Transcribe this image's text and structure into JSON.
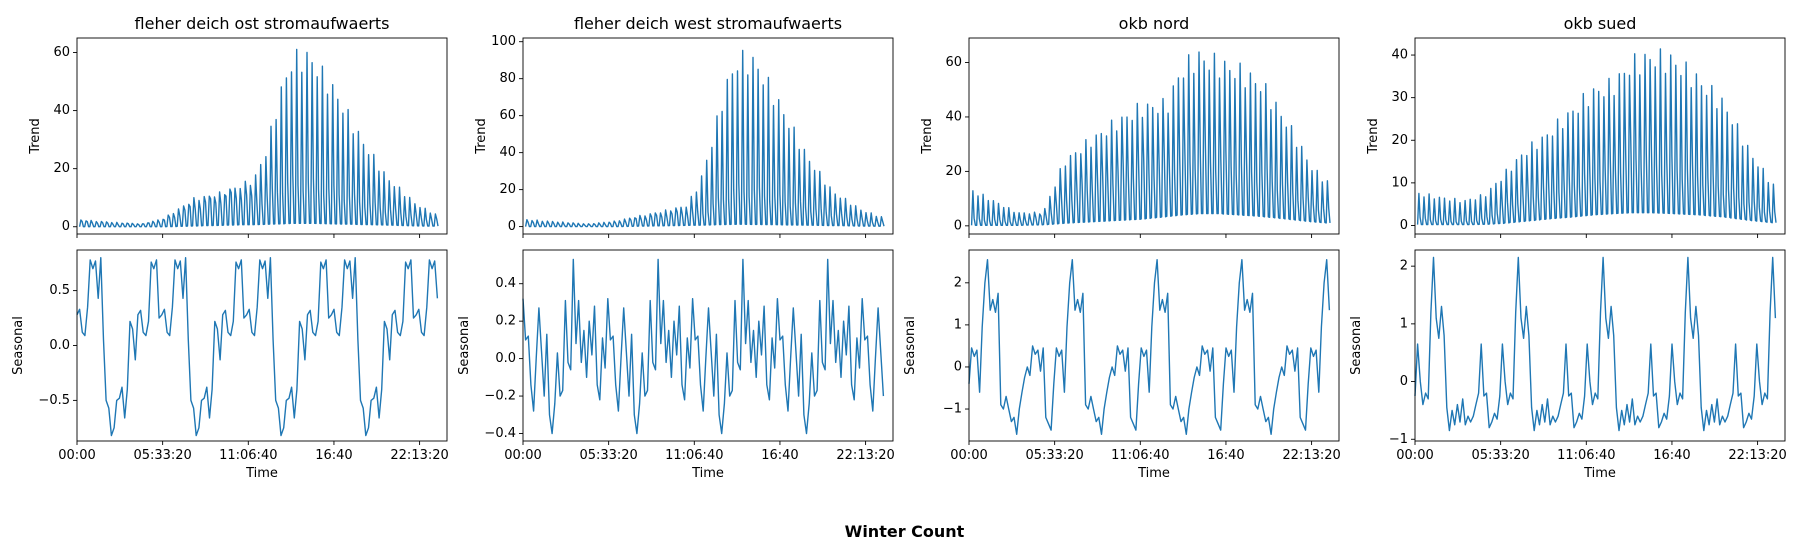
{
  "figure": {
    "suptitle": "Winter Count",
    "line_color": "#1f77b4"
  },
  "chart_data": [
    {
      "type": "line",
      "title": "fleher deich ost stromaufwaerts",
      "xlabel": "",
      "ylabel": "Trend",
      "ylim": [
        -2.5,
        65
      ],
      "yticks": [
        0,
        20,
        40,
        60
      ],
      "x_range": [
        0,
        86400
      ],
      "xticks": [
        0,
        20000,
        40000,
        60000,
        80000
      ],
      "xtick_labels": [
        "",
        "",
        "",
        "",
        ""
      ],
      "description": "trend of dense interleaved series: upper envelope rises to peak ~62 near 11:06:40-16:40, secondary low band ~0-20",
      "envelope": {
        "x": [
          0,
          9000,
          15000,
          20000,
          27000,
          33000,
          38000,
          41000,
          44000,
          47000,
          50000,
          54000,
          60000,
          66000,
          72000,
          79000,
          84000
        ],
        "upper": [
          2.5,
          1.5,
          1.0,
          3.0,
          10.0,
          12.0,
          15.0,
          17.0,
          28.0,
          48.0,
          61.0,
          62.0,
          49.0,
          32.0,
          18.0,
          8.0,
          4.0
        ],
        "mid": [
          2.0,
          1.0,
          1.0,
          2.5,
          8.0,
          11.0,
          13.0,
          10.0,
          12.0,
          16.0,
          18.0,
          17.0,
          14.0,
          10.0,
          7.0,
          4.0,
          2.5
        ],
        "lower": [
          0.0,
          0.0,
          0.0,
          0.0,
          0.3,
          0.5,
          0.7,
          0.7,
          0.9,
          1.0,
          1.2,
          1.2,
          1.0,
          0.8,
          0.6,
          0.3,
          0.2
        ]
      }
    },
    {
      "type": "line",
      "title": "fleher deich west stromaufwaerts",
      "xlabel": "",
      "ylabel": "Trend",
      "ylim": [
        -4,
        102
      ],
      "yticks": [
        0,
        20,
        40,
        60,
        80,
        100
      ],
      "x_range": [
        0,
        86400
      ],
      "xticks": [
        0,
        20000,
        40000,
        60000,
        80000
      ],
      "xtick_labels": [
        "",
        "",
        "",
        "",
        ""
      ],
      "description": "trend with peak ~97 near 12:00",
      "envelope": {
        "x": [
          0,
          9000,
          15000,
          21000,
          27000,
          33000,
          38000,
          41000,
          44000,
          47000,
          50000,
          54000,
          60000,
          66000,
          72000,
          79000,
          84000
        ],
        "upper": [
          4.0,
          2.5,
          1.5,
          3.0,
          6.0,
          9.0,
          12.0,
          25.0,
          50.0,
          80.0,
          96.0,
          94.0,
          68.0,
          40.0,
          20.0,
          9.0,
          5.0
        ],
        "mid": [
          2.5,
          1.5,
          1.0,
          2.0,
          5.0,
          7.0,
          9.0,
          8.0,
          14.0,
          20.0,
          24.0,
          22.0,
          17.0,
          12.0,
          8.0,
          4.0,
          2.5
        ],
        "lower": [
          0.0,
          0.0,
          0.0,
          0.0,
          0.3,
          0.5,
          0.7,
          0.8,
          1.0,
          1.2,
          1.3,
          1.2,
          1.0,
          0.8,
          0.6,
          0.3,
          0.2
        ]
      }
    },
    {
      "type": "line",
      "title": "okb nord",
      "xlabel": "",
      "ylabel": "Trend",
      "ylim": [
        -3,
        69
      ],
      "yticks": [
        0,
        20,
        40,
        60
      ],
      "x_range": [
        0,
        86400
      ],
      "xticks": [
        0,
        20000,
        40000,
        60000,
        80000
      ],
      "xtick_labels": [
        "",
        "",
        "",
        "",
        ""
      ],
      "description": "trend rising from ~14 to peak ~66 near 11:06:40",
      "envelope": {
        "x": [
          0,
          5000,
          11000,
          17000,
          22000,
          28000,
          34000,
          40000,
          46000,
          49000,
          53000,
          58000,
          63000,
          68000,
          74000,
          80000,
          84000
        ],
        "upper": [
          14.0,
          10.0,
          5.0,
          5.0,
          25.0,
          33.0,
          40.0,
          46.0,
          47.0,
          60.0,
          66.0,
          63.0,
          60.0,
          55.0,
          40.0,
          22.0,
          16.0
        ],
        "mid": [
          3.0,
          2.5,
          2.0,
          4.0,
          12.0,
          18.0,
          22.0,
          25.0,
          26.0,
          28.0,
          30.0,
          28.0,
          26.0,
          22.0,
          16.0,
          9.0,
          6.0
        ],
        "lower": [
          0.2,
          0.2,
          0.2,
          0.4,
          1.0,
          1.5,
          2.0,
          2.5,
          3.5,
          4.0,
          4.5,
          4.5,
          4.0,
          3.5,
          2.5,
          1.5,
          1.0
        ]
      }
    },
    {
      "type": "line",
      "title": "okb sued",
      "xlabel": "",
      "ylabel": "Trend",
      "ylim": [
        -2,
        44
      ],
      "yticks": [
        0,
        10,
        20,
        30,
        40
      ],
      "x_range": [
        0,
        86400
      ],
      "xticks": [
        0,
        20000,
        40000,
        60000,
        80000
      ],
      "xtick_labels": [
        "",
        "",
        "",
        "",
        ""
      ],
      "description": "trend rising to plateau ~42 near 11:06:40-16:40",
      "envelope": {
        "x": [
          0,
          5000,
          11000,
          16000,
          20000,
          25000,
          30000,
          36000,
          41000,
          46000,
          50000,
          55000,
          60000,
          66000,
          72000,
          78000,
          84000
        ],
        "upper": [
          8.0,
          7.0,
          6.0,
          7.5,
          12.0,
          18.0,
          22.0,
          28.0,
          33.0,
          35.0,
          40.0,
          42.0,
          41.0,
          36.0,
          30.0,
          18.0,
          9.0
        ],
        "mid": [
          2.0,
          1.5,
          1.0,
          2.0,
          5.0,
          8.0,
          10.0,
          12.0,
          14.0,
          16.0,
          20.0,
          18.0,
          16.0,
          14.0,
          10.0,
          6.0,
          3.0
        ],
        "lower": [
          0.2,
          0.2,
          0.2,
          0.3,
          0.5,
          1.0,
          1.5,
          2.0,
          2.5,
          2.8,
          3.0,
          3.0,
          2.8,
          2.5,
          2.0,
          1.2,
          0.6
        ]
      }
    },
    {
      "type": "line",
      "title": "",
      "xlabel": "Time",
      "ylabel": "Seasonal",
      "ylim": [
        -0.87,
        0.87
      ],
      "yticks": [
        -0.5,
        0.0,
        0.5
      ],
      "ytick_labels": [
        "−0.5",
        "0.0",
        "0.5"
      ],
      "x_range": [
        0,
        86400
      ],
      "xticks": [
        0,
        20000,
        40000,
        60000,
        80000
      ],
      "xtick_labels": [
        "00:00",
        "05:33:20",
        "11:06:40",
        "16:40",
        "22:13:20"
      ],
      "period_seconds": 19800,
      "period_cycle_values": [
        0.28,
        0.33,
        0.12,
        0.09,
        0.35,
        0.78,
        0.7,
        0.77,
        0.43,
        0.8,
        0.05,
        -0.5,
        -0.57,
        -0.82,
        -0.75,
        -0.5,
        -0.48,
        -0.38,
        -0.66,
        -0.4,
        0.22,
        0.15,
        -0.13,
        0.28,
        0.32,
        0.12,
        0.09,
        0.22,
        0.76,
        0.7,
        0.78,
        0.25
      ],
      "x_end": 84300
    },
    {
      "type": "line",
      "title": "",
      "xlabel": "Time",
      "ylabel": "Seasonal",
      "ylim": [
        -0.44,
        0.58
      ],
      "yticks": [
        -0.4,
        -0.2,
        0.0,
        0.2,
        0.4
      ],
      "ytick_labels": [
        "−0.4",
        "−0.2",
        "0.0",
        "0.2",
        "0.4"
      ],
      "x_range": [
        0,
        86400
      ],
      "xticks": [
        0,
        20000,
        40000,
        60000,
        80000
      ],
      "xtick_labels": [
        "00:00",
        "05:33:20",
        "11:06:40",
        "16:40",
        "22:13:20"
      ],
      "period_seconds": 19800,
      "period_cycle_values": [
        0.32,
        0.1,
        0.12,
        -0.14,
        -0.28,
        0.0,
        0.27,
        0.04,
        -0.2,
        0.13,
        -0.3,
        -0.4,
        -0.24,
        0.03,
        -0.2,
        -0.17,
        0.31,
        -0.02,
        -0.06,
        0.53,
        0.08,
        0.31,
        -0.02,
        0.15,
        -0.1,
        0.2,
        0.02,
        0.28,
        -0.14,
        -0.22,
        0.11,
        -0.05
      ],
      "x_end": 84300
    },
    {
      "type": "line",
      "title": "",
      "xlabel": "Time",
      "ylabel": "Seasonal",
      "ylim": [
        -1.76,
        2.78
      ],
      "yticks": [
        -1,
        0,
        1,
        2
      ],
      "ytick_labels": [
        "−1",
        "0",
        "1",
        "2"
      ],
      "x_range": [
        0,
        86400
      ],
      "xticks": [
        0,
        20000,
        40000,
        60000,
        80000
      ],
      "xtick_labels": [
        "00:00",
        "05:33:20",
        "11:06:40",
        "16:40",
        "22:13:20"
      ],
      "period_seconds": 19800,
      "period_cycle_values": [
        -0.4,
        0.45,
        0.25,
        0.4,
        -0.6,
        0.95,
        2.0,
        2.55,
        1.35,
        1.6,
        1.3,
        1.75,
        -0.9,
        -1.0,
        -0.7,
        -1.0,
        -1.3,
        -1.2,
        -1.6,
        -1.0,
        -0.6,
        -0.25,
        0.0,
        -0.2,
        0.5,
        0.3,
        0.4,
        -0.1,
        0.45,
        -1.2,
        -1.35,
        -1.5
      ],
      "x_end": 84300
    },
    {
      "type": "line",
      "title": "",
      "xlabel": "Time",
      "ylabel": "Seasonal",
      "ylim": [
        -1.03,
        2.28
      ],
      "yticks": [
        -1,
        0,
        1,
        2
      ],
      "ytick_labels": [
        "−1",
        "0",
        "1",
        "2"
      ],
      "x_range": [
        0,
        86400
      ],
      "xticks": [
        0,
        20000,
        40000,
        60000,
        80000
      ],
      "xtick_labels": [
        "00:00",
        "05:33:20",
        "11:06:40",
        "16:40",
        "22:13:20"
      ],
      "period_seconds": 19800,
      "period_cycle_values": [
        -0.25,
        0.65,
        0.0,
        -0.4,
        -0.2,
        -0.3,
        1.2,
        2.15,
        1.1,
        0.75,
        1.3,
        0.8,
        -0.45,
        -0.85,
        -0.5,
        -0.75,
        -0.4,
        -0.7,
        -0.3,
        -0.75,
        -0.6,
        -0.7,
        -0.6,
        -0.4,
        -0.2,
        0.65,
        -0.25,
        -0.2,
        -0.8,
        -0.7,
        -0.55,
        -0.65
      ],
      "x_end": 84300
    }
  ]
}
